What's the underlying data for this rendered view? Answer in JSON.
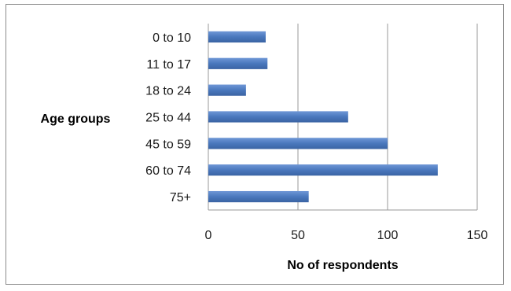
{
  "chart_data": {
    "type": "bar",
    "orientation": "horizontal",
    "categories": [
      "0 to 10",
      "11 to 17",
      "18 to 24",
      "25 to 44",
      "45 to 59",
      "60 to 74",
      "75+"
    ],
    "values": [
      32,
      33,
      21,
      78,
      100,
      128,
      56
    ],
    "xlabel": "No of respondents",
    "ylabel": "Age groups",
    "xlim": [
      0,
      150
    ],
    "xticks": [
      0,
      50,
      100,
      150
    ],
    "xtick_labels": [
      "0",
      "50",
      "100",
      "150"
    ],
    "grid": "vertical",
    "legend": "none",
    "bar_color": "#4a78bd"
  }
}
